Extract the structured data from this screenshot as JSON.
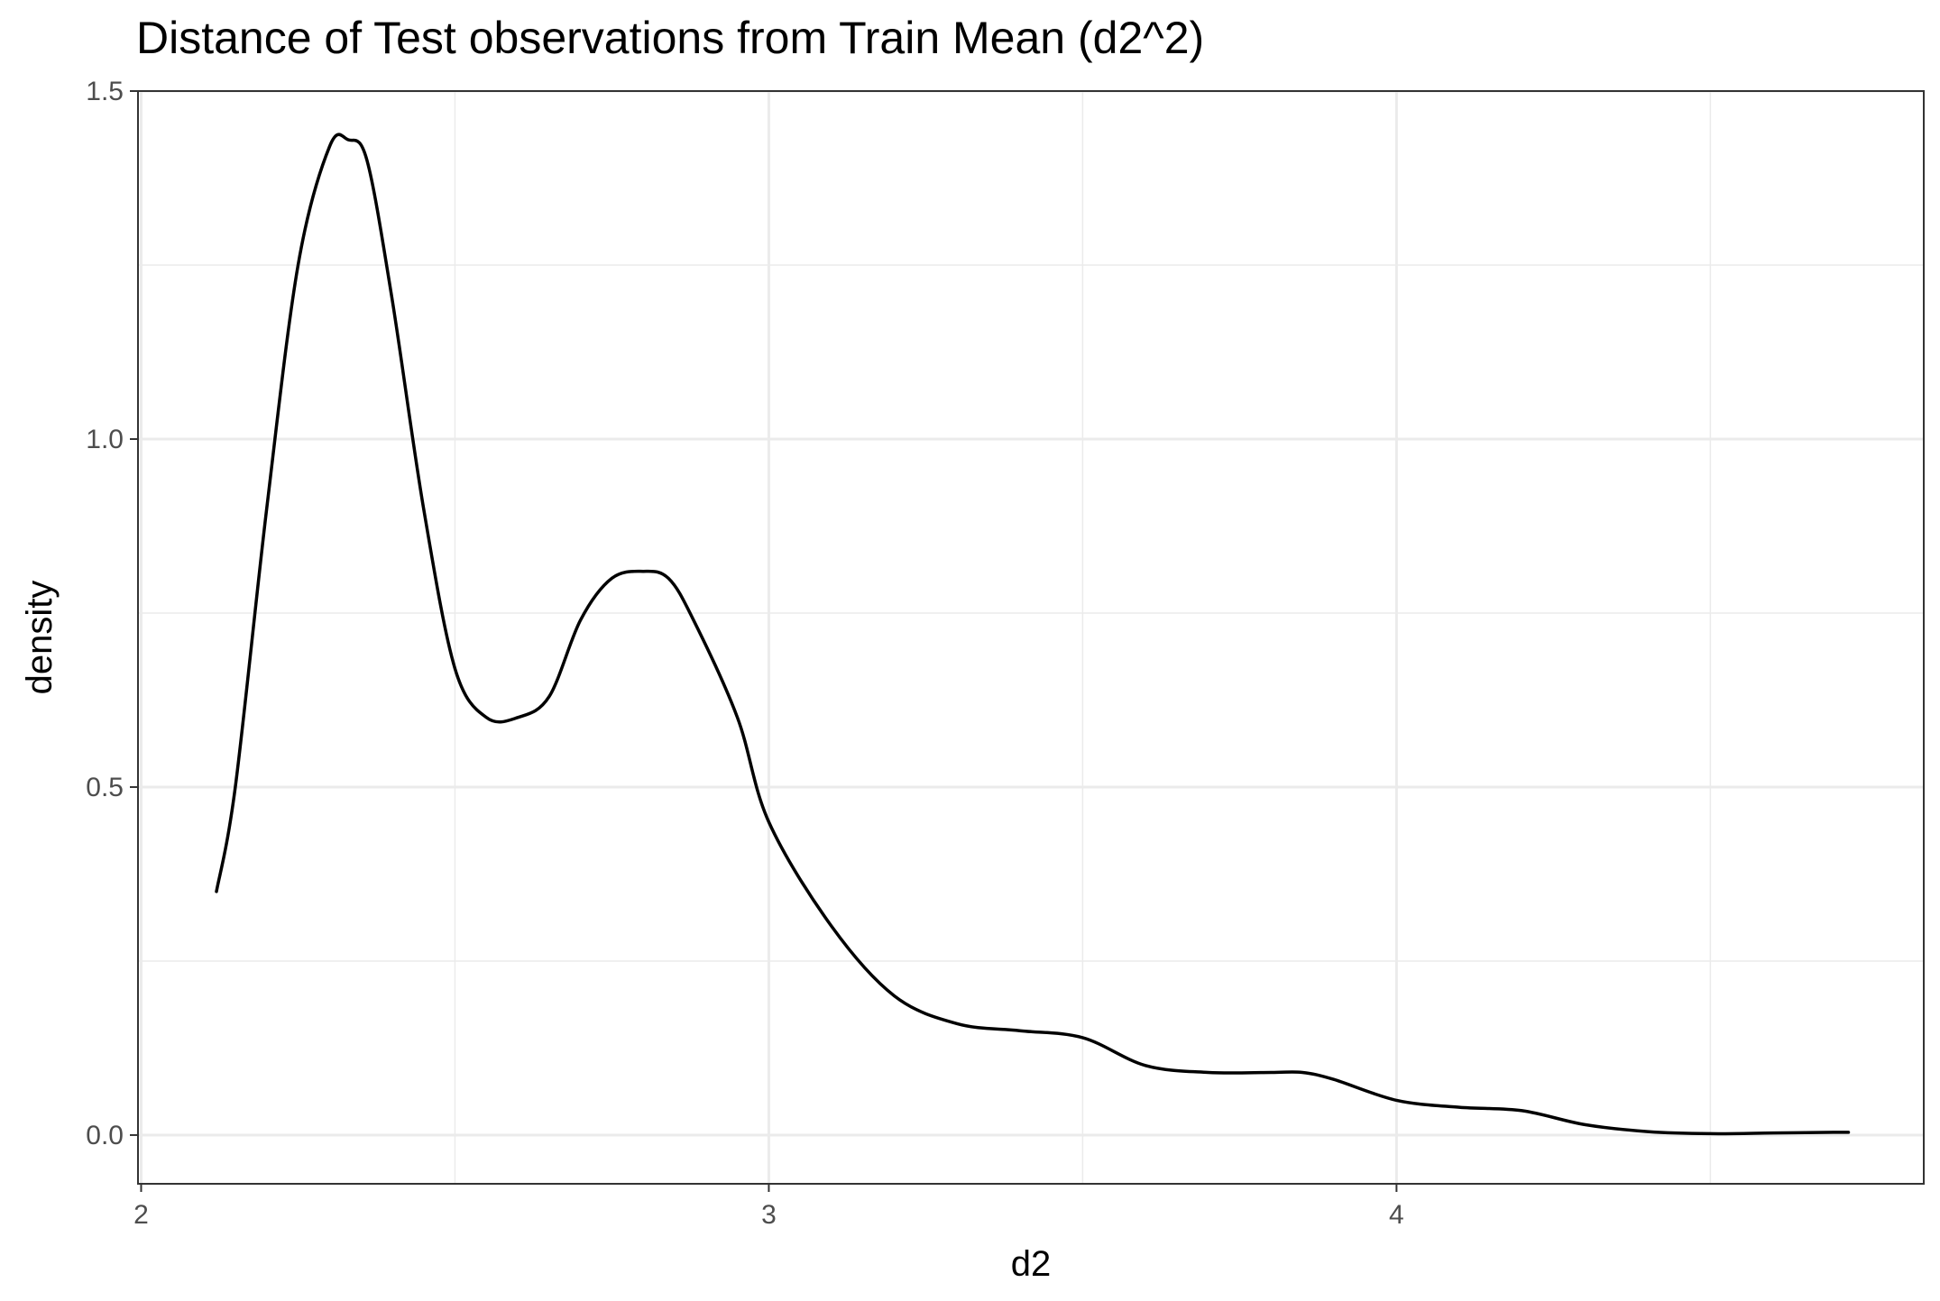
{
  "chart_data": {
    "type": "line",
    "title": "Distance of Test observations from Train Mean (d2^2)",
    "xlabel": "d2",
    "ylabel": "density",
    "xlim": [
      1.995,
      4.84
    ],
    "ylim": [
      -0.07,
      1.5
    ],
    "x_ticks": [
      2,
      3,
      4
    ],
    "x_tick_labels": [
      "2",
      "3",
      "4"
    ],
    "x_minor_ticks": [
      2.5,
      3.5,
      4.5
    ],
    "y_ticks": [
      0.0,
      0.5,
      1.0,
      1.5
    ],
    "y_tick_labels": [
      "0.0",
      "0.5",
      "1.0",
      "1.5"
    ],
    "y_minor_ticks": [
      0.25,
      0.75,
      1.25
    ],
    "grid": true,
    "legend": "none",
    "line_color": "#000000",
    "series": [
      {
        "x": [
          2.12,
          2.15,
          2.2,
          2.25,
          2.3,
          2.33,
          2.36,
          2.4,
          2.45,
          2.5,
          2.55,
          2.6,
          2.65,
          2.7,
          2.75,
          2.8,
          2.84,
          2.88,
          2.95,
          3.0,
          3.1,
          3.2,
          3.3,
          3.4,
          3.5,
          3.6,
          3.7,
          3.8,
          3.85,
          3.9,
          4.0,
          4.1,
          4.2,
          4.3,
          4.4,
          4.5,
          4.6,
          4.7,
          4.72
        ],
        "y": [
          0.35,
          0.5,
          0.9,
          1.25,
          1.42,
          1.43,
          1.4,
          1.2,
          0.9,
          0.67,
          0.6,
          0.6,
          0.63,
          0.74,
          0.8,
          0.81,
          0.8,
          0.74,
          0.6,
          0.45,
          0.3,
          0.2,
          0.16,
          0.15,
          0.14,
          0.1,
          0.09,
          0.09,
          0.09,
          0.08,
          0.05,
          0.04,
          0.035,
          0.015,
          0.005,
          0.002,
          0.003,
          0.004,
          0.004
        ]
      }
    ]
  }
}
